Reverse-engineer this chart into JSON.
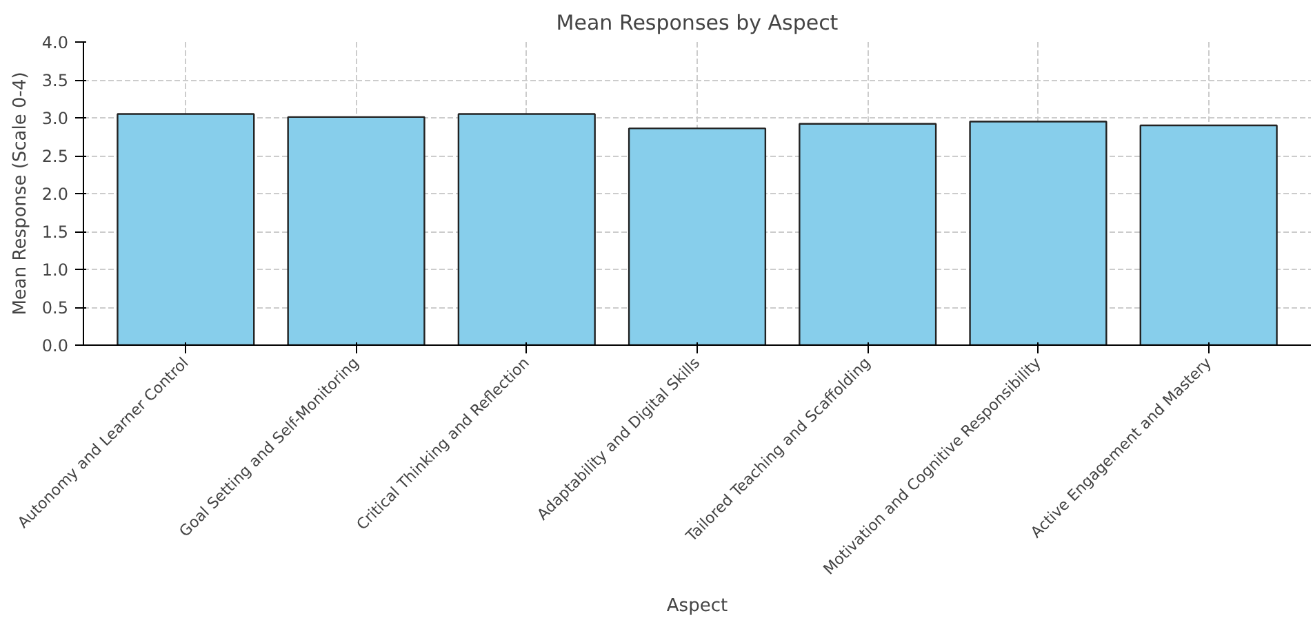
{
  "chart_data": {
    "type": "bar",
    "title": "Mean Responses by Aspect",
    "xlabel": "Aspect",
    "ylabel": "Mean Response (Scale 0-4)",
    "categories": [
      "Autonomy and Learner Control",
      "Goal Setting and Self-Monitoring",
      "Critical Thinking and Reflection",
      "Adaptability and Digital Skills",
      "Tailored Teaching and Scaffolding",
      "Motivation and Cognitive Responsibility",
      "Active Engagement and Mastery"
    ],
    "values": [
      3.05,
      3.01,
      3.05,
      2.86,
      2.92,
      2.95,
      2.9
    ],
    "color": "#87ceeb",
    "ylim": [
      0,
      4
    ],
    "yticks": [
      {
        "value": 0,
        "label": "0.0"
      },
      0.5,
      {
        "value": 1,
        "label": "1.0"
      },
      1.5,
      {
        "value": 2,
        "label": "2.0"
      },
      2.5,
      {
        "value": 3,
        "label": "3.0"
      },
      3.5,
      {
        "value": 4,
        "label": "4.0"
      }
    ],
    "grid": true
  }
}
